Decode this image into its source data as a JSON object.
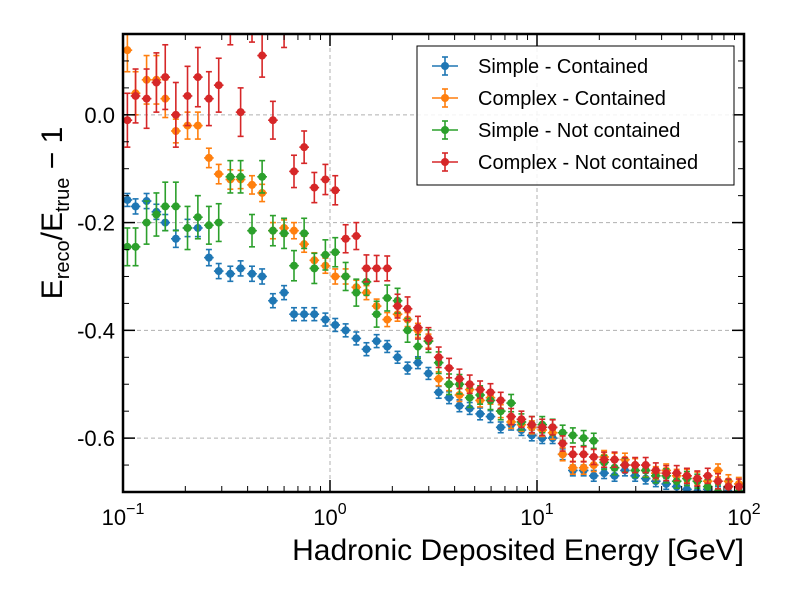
{
  "chart_data": {
    "type": "scatter",
    "xscale": "log",
    "xlim": [
      0.1,
      100
    ],
    "ylim": [
      -0.7,
      0.15
    ],
    "xlabel": "Hadronic Deposited Energy [GeV]",
    "ylabel": "E_reco/E_true − 1",
    "ylabel_parts": {
      "main1": "E",
      "sub1": "reco",
      "mid": "/E",
      "sub2": "true",
      "tail": " − 1"
    },
    "x_ticks": [
      {
        "value": 0.1,
        "base": "10",
        "exp": "−1"
      },
      {
        "value": 1,
        "base": "10",
        "exp": "0"
      },
      {
        "value": 10,
        "base": "10",
        "exp": "1"
      },
      {
        "value": 100,
        "base": "10",
        "exp": "2"
      }
    ],
    "y_ticks": [
      {
        "value": 0.0,
        "label": "0.0"
      },
      {
        "value": -0.2,
        "label": "-0.2"
      },
      {
        "value": -0.4,
        "label": "-0.4"
      },
      {
        "value": -0.6,
        "label": "-0.6"
      }
    ],
    "grid": true,
    "legend_position": "top-right",
    "series": [
      {
        "name": "Simple - Contained",
        "color": "#1f77b4",
        "x": [
          0.105,
          0.115,
          0.13,
          0.145,
          0.16,
          0.18,
          0.205,
          0.23,
          0.26,
          0.29,
          0.33,
          0.37,
          0.42,
          0.47,
          0.53,
          0.6,
          0.67,
          0.75,
          0.84,
          0.95,
          1.06,
          1.19,
          1.34,
          1.5,
          1.68,
          1.89,
          2.12,
          2.37,
          2.66,
          2.99,
          3.35,
          3.76,
          4.22,
          4.73,
          5.31,
          5.96,
          6.68,
          7.5,
          8.41,
          9.44,
          10.6,
          11.9,
          13.3,
          14.9,
          16.8,
          18.8,
          21.1,
          23.7,
          26.6,
          29.8,
          33.5,
          37.5,
          42.1,
          47.3,
          53.0,
          59.5,
          66.8,
          74.9,
          84.1,
          94.4
        ],
        "y": [
          -0.158,
          -0.17,
          -0.16,
          -0.18,
          -0.2,
          -0.23,
          -0.21,
          -0.21,
          -0.265,
          -0.29,
          -0.295,
          -0.285,
          -0.295,
          -0.3,
          -0.345,
          -0.33,
          -0.37,
          -0.37,
          -0.37,
          -0.38,
          -0.39,
          -0.4,
          -0.415,
          -0.435,
          -0.42,
          -0.43,
          -0.45,
          -0.47,
          -0.46,
          -0.48,
          -0.515,
          -0.525,
          -0.54,
          -0.545,
          -0.555,
          -0.56,
          -0.58,
          -0.575,
          -0.585,
          -0.595,
          -0.6,
          -0.6,
          -0.63,
          -0.66,
          -0.66,
          -0.67,
          -0.665,
          -0.67,
          -0.66,
          -0.67,
          -0.675,
          -0.68,
          -0.685,
          -0.69,
          -0.695,
          -0.7,
          -0.695,
          -0.7,
          -0.7,
          -0.7
        ],
        "yerr": [
          0.012,
          0.014,
          0.014,
          0.014,
          0.015,
          0.016,
          0.016,
          0.016,
          0.015,
          0.014,
          0.014,
          0.014,
          0.014,
          0.014,
          0.013,
          0.013,
          0.012,
          0.012,
          0.012,
          0.012,
          0.012,
          0.012,
          0.012,
          0.012,
          0.012,
          0.011,
          0.011,
          0.011,
          0.011,
          0.011,
          0.011,
          0.011,
          0.011,
          0.011,
          0.011,
          0.011,
          0.01,
          0.01,
          0.01,
          0.01,
          0.01,
          0.01,
          0.01,
          0.01,
          0.01,
          0.01,
          0.01,
          0.01,
          0.01,
          0.01,
          0.01,
          0.01,
          0.01,
          0.01,
          0.01,
          0.01,
          0.01,
          0.01,
          0.01,
          0.01
        ]
      },
      {
        "name": "Complex - Contained",
        "color": "#ff7f0e",
        "x": [
          0.105,
          0.115,
          0.13,
          0.145,
          0.16,
          0.18,
          0.205,
          0.23,
          0.26,
          0.29,
          0.33,
          0.37,
          0.42,
          0.47,
          0.53,
          0.6,
          0.67,
          0.75,
          0.84,
          0.95,
          1.06,
          1.19,
          1.34,
          1.5,
          1.68,
          1.89,
          2.12,
          2.37,
          2.66,
          2.99,
          3.35,
          3.76,
          4.22,
          4.73,
          5.31,
          5.96,
          6.68,
          7.5,
          8.41,
          9.44,
          10.6,
          11.9,
          13.3,
          14.9,
          16.8,
          18.8,
          21.1,
          23.7,
          26.6,
          29.8,
          33.5,
          37.5,
          42.1,
          47.3,
          53.0,
          59.5,
          66.8,
          74.9,
          84.1,
          94.4
        ],
        "y": [
          0.12,
          0.04,
          0.065,
          0.065,
          0.03,
          -0.03,
          -0.02,
          -0.02,
          -0.08,
          -0.11,
          -0.12,
          -0.12,
          -0.13,
          -0.145,
          -0.215,
          -0.21,
          -0.215,
          -0.24,
          -0.27,
          -0.28,
          -0.3,
          -0.3,
          -0.32,
          -0.33,
          -0.355,
          -0.38,
          -0.37,
          -0.38,
          -0.4,
          -0.42,
          -0.49,
          -0.5,
          -0.52,
          -0.51,
          -0.53,
          -0.525,
          -0.55,
          -0.57,
          -0.575,
          -0.58,
          -0.585,
          -0.59,
          -0.63,
          -0.655,
          -0.655,
          -0.65,
          -0.635,
          -0.64,
          -0.64,
          -0.65,
          -0.66,
          -0.665,
          -0.66,
          -0.67,
          -0.67,
          -0.675,
          -0.68,
          -0.66,
          -0.68,
          -0.685
        ],
        "yerr": [
          0.04,
          0.04,
          0.045,
          0.045,
          0.035,
          0.022,
          0.025,
          0.025,
          0.018,
          0.018,
          0.018,
          0.017,
          0.017,
          0.016,
          0.015,
          0.015,
          0.015,
          0.015,
          0.014,
          0.014,
          0.014,
          0.014,
          0.013,
          0.013,
          0.013,
          0.013,
          0.013,
          0.013,
          0.013,
          0.013,
          0.013,
          0.012,
          0.012,
          0.012,
          0.012,
          0.012,
          0.012,
          0.012,
          0.012,
          0.012,
          0.012,
          0.012,
          0.012,
          0.012,
          0.012,
          0.012,
          0.012,
          0.012,
          0.012,
          0.012,
          0.012,
          0.012,
          0.012,
          0.012,
          0.012,
          0.012,
          0.012,
          0.012,
          0.012,
          0.012
        ]
      },
      {
        "name": "Simple - Not contained",
        "color": "#2ca02c",
        "x": [
          0.105,
          0.115,
          0.13,
          0.145,
          0.16,
          0.18,
          0.205,
          0.23,
          0.26,
          0.29,
          0.33,
          0.37,
          0.42,
          0.47,
          0.53,
          0.6,
          0.67,
          0.75,
          0.84,
          0.95,
          1.06,
          1.19,
          1.34,
          1.5,
          1.68,
          1.89,
          2.12,
          2.37,
          2.66,
          2.99,
          3.35,
          3.76,
          4.22,
          4.73,
          5.31,
          5.96,
          6.68,
          7.5,
          8.41,
          9.44,
          10.6,
          11.9,
          13.3,
          14.9,
          16.8,
          18.8,
          21.1,
          23.7,
          26.6,
          29.8,
          33.5,
          37.5,
          42.1,
          47.3,
          53.0,
          59.5,
          66.8,
          74.9,
          84.1,
          94.4
        ],
        "y": [
          -0.245,
          -0.245,
          -0.2,
          -0.185,
          -0.17,
          -0.17,
          -0.21,
          -0.19,
          -0.205,
          -0.2,
          -0.115,
          -0.115,
          -0.215,
          -0.115,
          -0.215,
          -0.22,
          -0.28,
          -0.22,
          -0.285,
          -0.26,
          -0.255,
          -0.3,
          -0.33,
          -0.31,
          -0.37,
          -0.34,
          -0.345,
          -0.4,
          -0.43,
          -0.42,
          -0.46,
          -0.5,
          -0.5,
          -0.525,
          -0.52,
          -0.53,
          -0.55,
          -0.535,
          -0.57,
          -0.575,
          -0.575,
          -0.58,
          -0.59,
          -0.595,
          -0.6,
          -0.605,
          -0.645,
          -0.655,
          -0.65,
          -0.66,
          -0.66,
          -0.67,
          -0.67,
          -0.68,
          -0.675,
          -0.68,
          -0.69,
          -0.7,
          -0.69,
          -0.7
        ],
        "yerr": [
          0.035,
          0.035,
          0.04,
          0.04,
          0.045,
          0.045,
          0.04,
          0.04,
          0.035,
          0.035,
          0.03,
          0.03,
          0.03,
          0.03,
          0.028,
          0.028,
          0.028,
          0.028,
          0.028,
          0.028,
          0.027,
          0.026,
          0.025,
          0.025,
          0.024,
          0.024,
          0.023,
          0.022,
          0.022,
          0.021,
          0.02,
          0.019,
          0.018,
          0.018,
          0.017,
          0.017,
          0.016,
          0.016,
          0.015,
          0.015,
          0.015,
          0.015,
          0.014,
          0.014,
          0.014,
          0.014,
          0.013,
          0.013,
          0.013,
          0.013,
          0.013,
          0.013,
          0.013,
          0.013,
          0.013,
          0.013,
          0.013,
          0.013,
          0.013,
          0.013
        ]
      },
      {
        "name": "Complex - Not contained",
        "color": "#d62728",
        "x": [
          0.105,
          0.115,
          0.13,
          0.145,
          0.16,
          0.18,
          0.205,
          0.23,
          0.26,
          0.29,
          0.33,
          0.37,
          0.42,
          0.47,
          0.53,
          0.6,
          0.67,
          0.75,
          0.84,
          0.95,
          1.06,
          1.19,
          1.34,
          1.5,
          1.68,
          1.89,
          2.12,
          2.37,
          2.66,
          2.99,
          3.35,
          3.76,
          4.22,
          4.73,
          5.31,
          5.96,
          6.68,
          7.5,
          8.41,
          9.44,
          10.6,
          11.9,
          13.3,
          14.9,
          16.8,
          18.8,
          21.1,
          23.7,
          26.6,
          29.8,
          33.5,
          37.5,
          42.1,
          47.3,
          53.0,
          59.5,
          66.8,
          74.9,
          84.1,
          94.4
        ],
        "y": [
          -0.01,
          0.035,
          0.03,
          0.06,
          0.07,
          0.0,
          0.035,
          0.07,
          0.03,
          0.055,
          0.175,
          0.005,
          0.18,
          0.11,
          -0.01,
          0.16,
          -0.105,
          -0.06,
          -0.135,
          -0.12,
          -0.14,
          -0.23,
          -0.225,
          -0.285,
          -0.285,
          -0.285,
          -0.355,
          -0.36,
          -0.395,
          -0.415,
          -0.45,
          -0.47,
          -0.49,
          -0.5,
          -0.51,
          -0.515,
          -0.53,
          -0.56,
          -0.565,
          -0.575,
          -0.58,
          -0.58,
          -0.61,
          -0.63,
          -0.63,
          -0.635,
          -0.64,
          -0.64,
          -0.65,
          -0.65,
          -0.65,
          -0.66,
          -0.665,
          -0.665,
          -0.67,
          -0.675,
          -0.67,
          -0.68,
          -0.69,
          -0.69
        ],
        "yerr": [
          0.05,
          0.05,
          0.055,
          0.055,
          0.06,
          0.06,
          0.055,
          0.055,
          0.05,
          0.05,
          0.045,
          0.045,
          0.045,
          0.04,
          0.035,
          0.035,
          0.03,
          0.03,
          0.028,
          0.028,
          0.027,
          0.026,
          0.025,
          0.025,
          0.024,
          0.023,
          0.022,
          0.022,
          0.021,
          0.02,
          0.019,
          0.018,
          0.018,
          0.017,
          0.016,
          0.016,
          0.015,
          0.015,
          0.015,
          0.015,
          0.015,
          0.014,
          0.014,
          0.014,
          0.014,
          0.014,
          0.014,
          0.014,
          0.014,
          0.014,
          0.014,
          0.014,
          0.014,
          0.014,
          0.014,
          0.014,
          0.014,
          0.014,
          0.014,
          0.014
        ]
      }
    ]
  }
}
